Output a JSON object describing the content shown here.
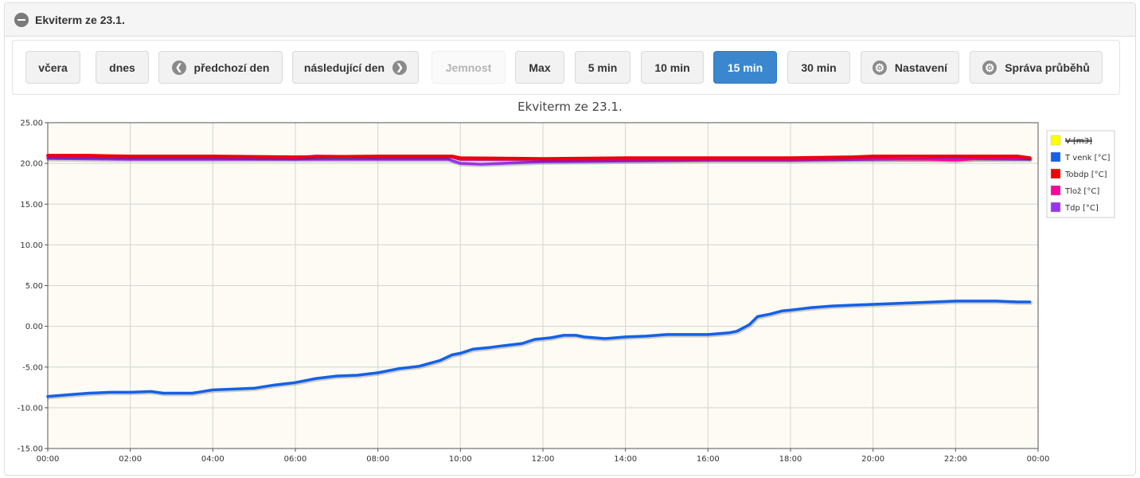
{
  "panel": {
    "title": "Ekviterm ze 23.1."
  },
  "toolbar": {
    "buttons": [
      {
        "label": "včera",
        "state": "normal"
      },
      {
        "label": "dnes",
        "state": "normal"
      },
      {
        "label": "předchozí den",
        "state": "normal",
        "icon": "arrow-left-icon"
      },
      {
        "label": "následující den",
        "state": "normal",
        "icon": "arrow-right-icon"
      },
      {
        "label": "Jemnost",
        "state": "disabled"
      },
      {
        "label": "Max",
        "state": "normal"
      },
      {
        "label": "5 min",
        "state": "normal"
      },
      {
        "label": "10 min",
        "state": "normal"
      },
      {
        "label": "15 min",
        "state": "active"
      },
      {
        "label": "30 min",
        "state": "normal"
      },
      {
        "label": "Nastavení",
        "state": "normal",
        "icon": "gear-icon"
      },
      {
        "label": "Správa průběhů",
        "state": "normal",
        "icon": "gear-icon"
      }
    ]
  },
  "colors": {
    "active_button": "#3a87cf",
    "plot_background": "#fdfbf3"
  },
  "chart_data": {
    "type": "line",
    "title": "Ekviterm ze 23.1.",
    "xlabel": "",
    "ylabel": "",
    "ylim": [
      -15,
      25
    ],
    "yticks": [
      "25.00",
      "20.00",
      "15.00",
      "10.00",
      "5.00",
      "0.00",
      "-5.00",
      "-10.00",
      "-15.00"
    ],
    "xticks": [
      "00:00",
      "02:00",
      "04:00",
      "06:00",
      "08:00",
      "10:00",
      "12:00",
      "14:00",
      "16:00",
      "18:00",
      "20:00",
      "22:00",
      "00:00"
    ],
    "x_range_hours": [
      0,
      24
    ],
    "grid": true,
    "legend_position": "right-top",
    "series": [
      {
        "name": "V [m3]",
        "color": "#ffff00",
        "hidden": true,
        "points": []
      },
      {
        "name": "T venk [°C]",
        "color": "#1560e8",
        "points": [
          [
            0,
            -8.6
          ],
          [
            0.5,
            -8.4
          ],
          [
            1,
            -8.2
          ],
          [
            1.5,
            -8.1
          ],
          [
            2,
            -8.1
          ],
          [
            2.5,
            -8.0
          ],
          [
            2.8,
            -8.2
          ],
          [
            3.5,
            -8.2
          ],
          [
            4,
            -7.8
          ],
          [
            4.5,
            -7.7
          ],
          [
            5,
            -7.6
          ],
          [
            5.5,
            -7.2
          ],
          [
            6,
            -6.9
          ],
          [
            6.5,
            -6.4
          ],
          [
            7,
            -6.1
          ],
          [
            7.5,
            -6.0
          ],
          [
            8,
            -5.7
          ],
          [
            8.5,
            -5.2
          ],
          [
            9,
            -4.9
          ],
          [
            9.5,
            -4.2
          ],
          [
            9.8,
            -3.5
          ],
          [
            10,
            -3.3
          ],
          [
            10.3,
            -2.8
          ],
          [
            10.7,
            -2.6
          ],
          [
            11,
            -2.4
          ],
          [
            11.5,
            -2.1
          ],
          [
            11.8,
            -1.6
          ],
          [
            12.2,
            -1.4
          ],
          [
            12.5,
            -1.1
          ],
          [
            12.8,
            -1.1
          ],
          [
            13,
            -1.3
          ],
          [
            13.5,
            -1.5
          ],
          [
            14,
            -1.3
          ],
          [
            14.5,
            -1.2
          ],
          [
            15,
            -1.0
          ],
          [
            15.5,
            -1.0
          ],
          [
            16,
            -1.0
          ],
          [
            16.5,
            -0.8
          ],
          [
            16.7,
            -0.6
          ],
          [
            17,
            0.2
          ],
          [
            17.2,
            1.2
          ],
          [
            17.5,
            1.5
          ],
          [
            17.8,
            1.9
          ],
          [
            18,
            2.0
          ],
          [
            18.5,
            2.3
          ],
          [
            19,
            2.5
          ],
          [
            19.5,
            2.6
          ],
          [
            20,
            2.7
          ],
          [
            20.5,
            2.8
          ],
          [
            21,
            2.9
          ],
          [
            21.5,
            3.0
          ],
          [
            22,
            3.1
          ],
          [
            22.5,
            3.1
          ],
          [
            23,
            3.1
          ],
          [
            23.5,
            3.0
          ],
          [
            23.8,
            3.0
          ]
        ]
      },
      {
        "name": "Tobdp [°C]",
        "color": "#ee0000",
        "points": [
          [
            0,
            21.0
          ],
          [
            1,
            21.0
          ],
          [
            2,
            20.9
          ],
          [
            4,
            20.9
          ],
          [
            6,
            20.8
          ],
          [
            8,
            20.9
          ],
          [
            9.8,
            20.9
          ],
          [
            10,
            20.7
          ],
          [
            12,
            20.6
          ],
          [
            14,
            20.7
          ],
          [
            16,
            20.7
          ],
          [
            18,
            20.7
          ],
          [
            19.5,
            20.8
          ],
          [
            20,
            20.9
          ],
          [
            22,
            20.9
          ],
          [
            23.5,
            20.9
          ],
          [
            23.8,
            20.7
          ]
        ]
      },
      {
        "name": "Tlož [°C]",
        "color": "#ff0099",
        "points": [
          [
            0,
            20.9
          ],
          [
            2,
            20.8
          ],
          [
            4,
            20.8
          ],
          [
            6,
            20.7
          ],
          [
            6.5,
            20.9
          ],
          [
            8,
            20.8
          ],
          [
            9.8,
            20.8
          ],
          [
            10,
            20.5
          ],
          [
            12,
            20.5
          ],
          [
            14,
            20.5
          ],
          [
            16,
            20.5
          ],
          [
            18,
            20.5
          ],
          [
            20,
            20.6
          ],
          [
            21.5,
            20.5
          ],
          [
            22,
            20.4
          ],
          [
            22.5,
            20.6
          ],
          [
            23.8,
            20.7
          ]
        ]
      },
      {
        "name": "Tdp [°C]",
        "color": "#9933ee",
        "points": [
          [
            0,
            20.6
          ],
          [
            2,
            20.5
          ],
          [
            4,
            20.5
          ],
          [
            6,
            20.5
          ],
          [
            8,
            20.5
          ],
          [
            9.7,
            20.5
          ],
          [
            10,
            20.0
          ],
          [
            10.5,
            19.9
          ],
          [
            11,
            20.0
          ],
          [
            12,
            20.2
          ],
          [
            14,
            20.3
          ],
          [
            16,
            20.4
          ],
          [
            18,
            20.4
          ],
          [
            20,
            20.5
          ],
          [
            22,
            20.6
          ],
          [
            23.8,
            20.5
          ]
        ]
      }
    ]
  }
}
